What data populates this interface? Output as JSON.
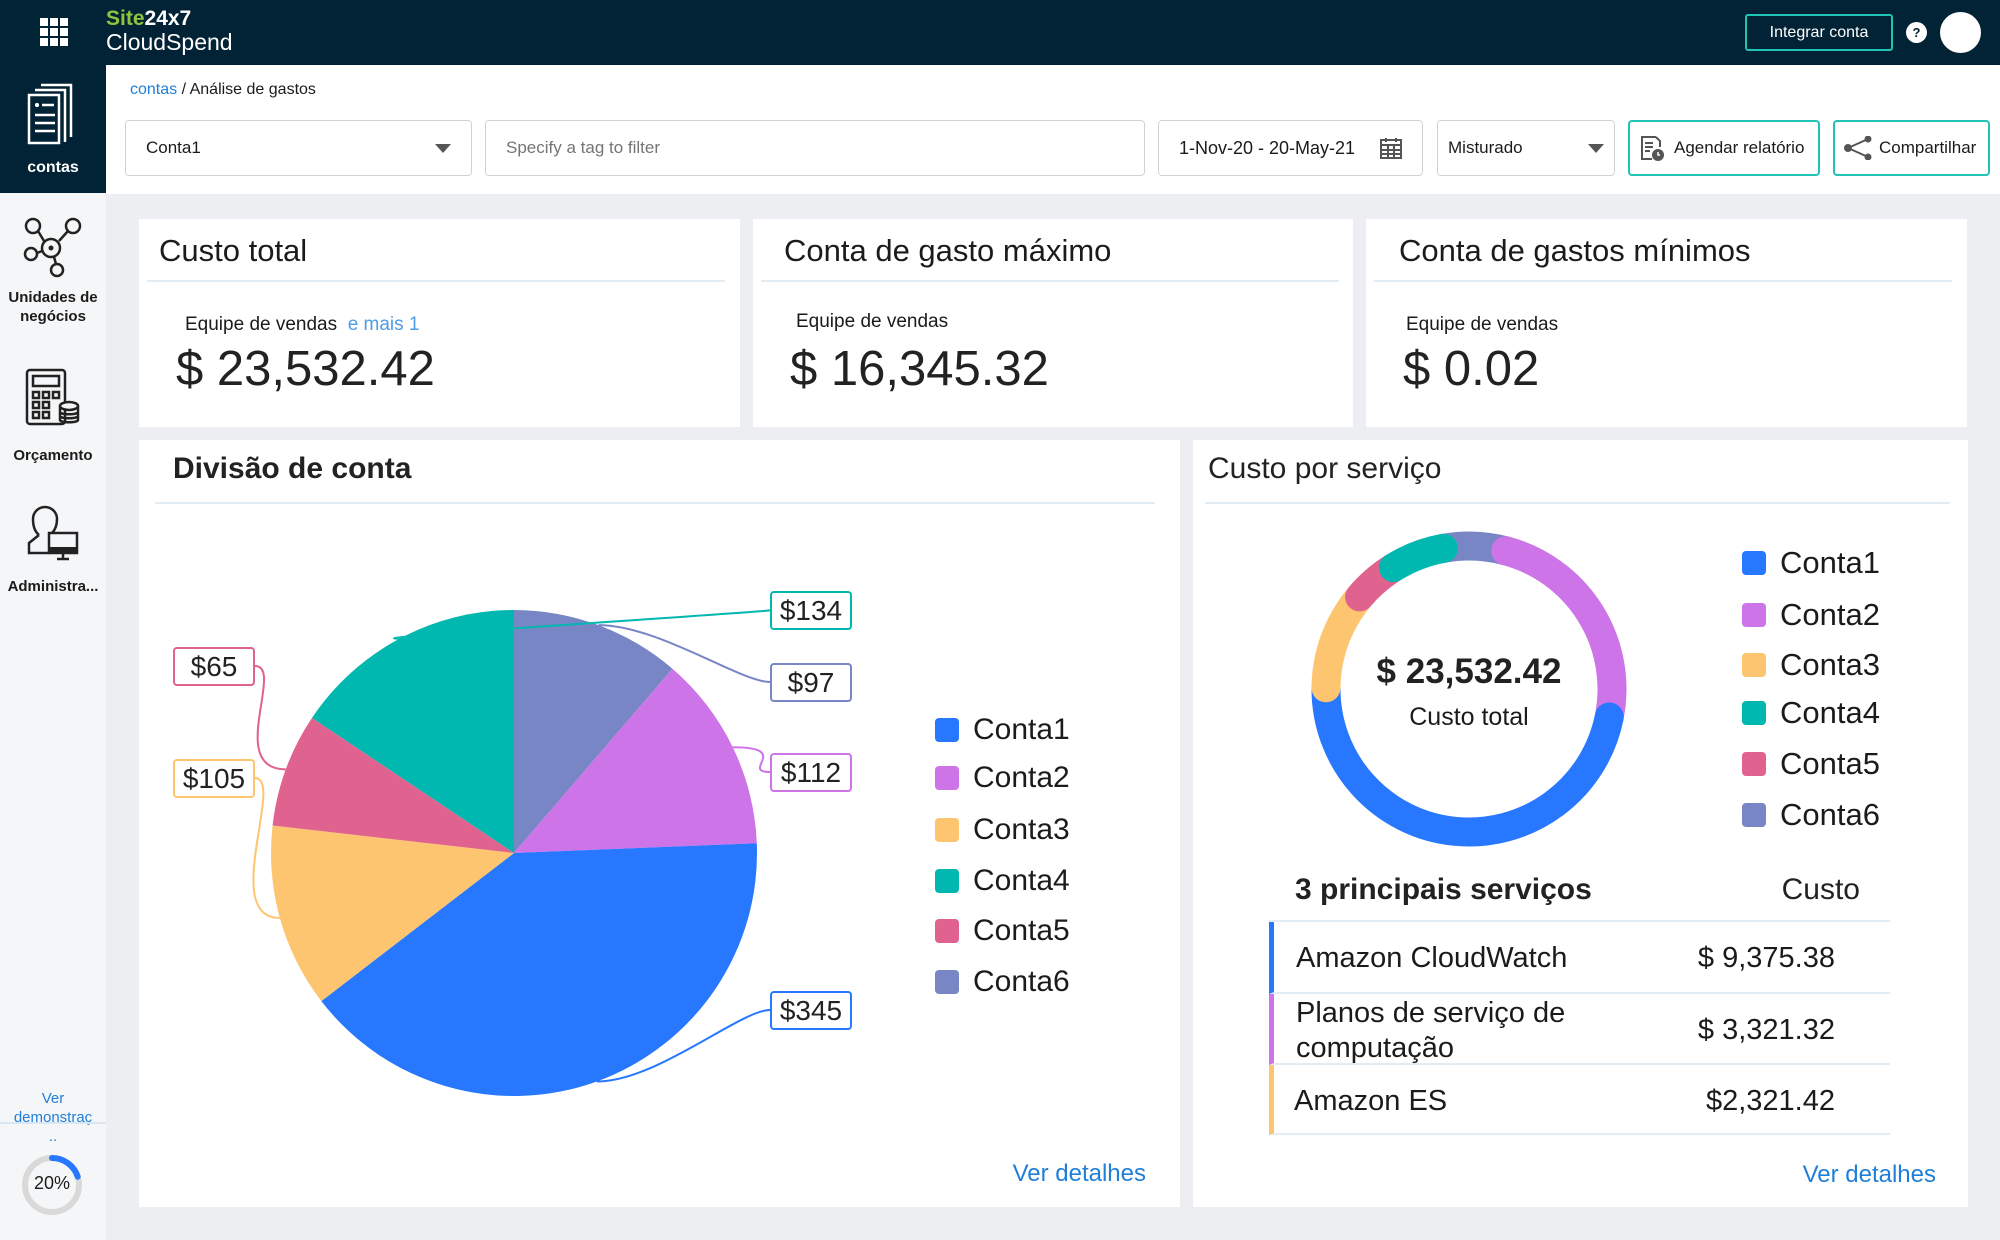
{
  "header": {
    "brand_top_a": "Site",
    "brand_top_b": "24x7",
    "brand_bottom": "CloudSpend",
    "integrate_label": "Integrar conta",
    "help_label": "?"
  },
  "sidebar": {
    "items": [
      {
        "label": "contas",
        "icon": "documents-icon",
        "active": true
      },
      {
        "label": "Unidades de negócios",
        "icon": "network-nodes-icon"
      },
      {
        "label": "Orçamento",
        "icon": "calculator-icon"
      },
      {
        "label": "Administra...",
        "icon": "admin-user-icon"
      }
    ],
    "demo_link": "Ver demonstraç..",
    "progress_label": "20%",
    "progress_value": 0.2
  },
  "breadcrumb": {
    "root": "contas",
    "current": "/ Análise de gastos"
  },
  "toolbar": {
    "account_value": "Conta1",
    "tag_placeholder": "Specify a tag to filter",
    "date_range": "1-Nov-20 - 20-May-21",
    "cost_type": "Misturado",
    "schedule_label": "Agendar relatório",
    "share_label": "Compartilhar"
  },
  "summary": [
    {
      "title": "Custo total",
      "subtitle": "Equipe de vendas",
      "more": "e mais 1",
      "value": "$ 23,532.42"
    },
    {
      "title": "Conta de gasto máximo",
      "subtitle": "Equipe de vendas",
      "value": "$ 16,345.32"
    },
    {
      "title": "Conta de gastos mínimos",
      "subtitle": "Equipe de vendas",
      "value": "$ 0.02"
    }
  ],
  "colors": {
    "Conta1": "#2877ff",
    "Conta2": "#cc74e8",
    "Conta3": "#fdc56f",
    "Conta4": "#00b8b0",
    "Conta5": "#e0628e",
    "Conta6": "#7986c6",
    "accent": "#1fc4b4",
    "link": "#1f7fd8",
    "header": "#022335"
  },
  "division": {
    "title": "Divisão de conta",
    "details_link": "Ver detalhes",
    "legend": [
      "Conta1",
      "Conta2",
      "Conta3",
      "Conta4",
      "Conta5",
      "Conta6"
    ]
  },
  "chart_data": {
    "type": "pie",
    "title": "Divisão de conta",
    "categories": [
      "Conta6",
      "Conta2",
      "Conta1",
      "Conta3",
      "Conta5",
      "Conta4"
    ],
    "values": [
      97,
      112,
      345,
      105,
      65,
      134
    ],
    "labels": [
      "$97",
      "$112",
      "$345",
      "$105",
      "$65",
      "$134"
    ],
    "legend_position": "right"
  },
  "service": {
    "title": "Custo por serviço",
    "center_value": "$ 23,532.42",
    "center_label": "Custo total",
    "legend": [
      "Conta1",
      "Conta2",
      "Conta3",
      "Conta4",
      "Conta5",
      "Conta6"
    ],
    "donut": [
      {
        "name": "Conta6",
        "share_pct": 7
      },
      {
        "name": "Conta2",
        "share_pct": 24
      },
      {
        "name": "Conta1",
        "share_pct": 47
      },
      {
        "name": "Conta3",
        "share_pct": 11
      },
      {
        "name": "Conta5",
        "share_pct": 5
      },
      {
        "name": "Conta4",
        "share_pct": 6
      }
    ],
    "table_header": "3 principais serviços",
    "cost_header": "Custo",
    "rows": [
      {
        "name": "Amazon CloudWatch",
        "cost": "$ 9,375.38",
        "color": "#2877ff"
      },
      {
        "name": "Planos de serviço de computação",
        "cost": "$ 3,321.32",
        "color": "#cc74e8"
      },
      {
        "name": "Amazon ES",
        "cost": "$2,321.42",
        "color": "#fdc56f"
      }
    ],
    "details_link": "Ver detalhes"
  }
}
